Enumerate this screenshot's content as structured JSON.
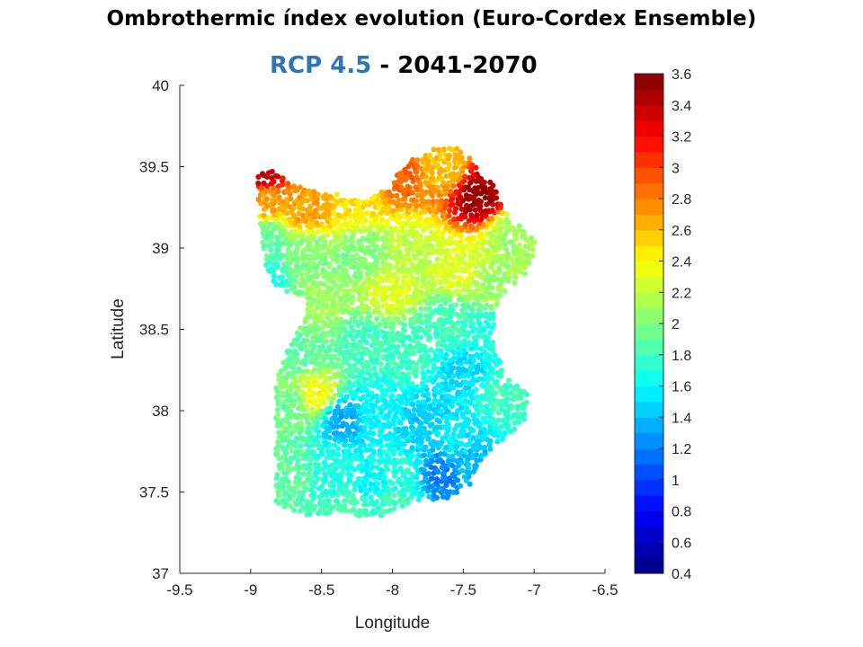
{
  "header": {
    "title": "Ombrothermic índex evolution (Euro-Cordex Ensemble)",
    "scenario": "RCP 4.5",
    "separator": " - ",
    "period": "2041-2070"
  },
  "colors": {
    "scenario": "#2e75b6",
    "axis": "#262626"
  },
  "chart_data": {
    "type": "scatter",
    "title": "Ombrothermic índex evolution (Euro-Cordex Ensemble)",
    "subtitle": "RCP 4.5 - 2041-2070",
    "xlabel": "Longitude",
    "ylabel": "Latitude",
    "xlim": [
      -9.5,
      -6.5
    ],
    "ylim": [
      37,
      40
    ],
    "xticks": [
      -9.5,
      -9,
      -8.5,
      -8,
      -7.5,
      -7,
      -6.5
    ],
    "xtick_labels": [
      "-9.5",
      "-9",
      "-8.5",
      "-8",
      "-7.5",
      "-7",
      "-6.5"
    ],
    "yticks": [
      37,
      37.5,
      38,
      38.5,
      39,
      39.5,
      40
    ],
    "ytick_labels": [
      "37",
      "37.5",
      "38",
      "38.5",
      "39",
      "39.5",
      "40"
    ],
    "grid": false,
    "colorbar": {
      "colormap": "jet",
      "range": [
        0.4,
        3.6
      ],
      "steps": 32,
      "ticks": [
        0.4,
        0.6,
        0.8,
        1,
        1.2,
        1.4,
        1.6,
        1.8,
        2,
        2.2,
        2.4,
        2.6,
        2.8,
        3,
        3.2,
        3.4,
        3.6
      ],
      "tick_labels": [
        "0.4",
        "0.6",
        "0.8",
        "1",
        "1.2",
        "1.4",
        "1.6",
        "1.8",
        "2",
        "2.2",
        "2.4",
        "2.6",
        "2.8",
        "3",
        "3.2",
        "3.4",
        "3.6"
      ]
    },
    "region_outline": [
      [
        -8.95,
        39.45
      ],
      [
        -8.85,
        39.48
      ],
      [
        -8.75,
        39.42
      ],
      [
        -8.6,
        39.35
      ],
      [
        -8.45,
        39.36
      ],
      [
        -8.3,
        39.3
      ],
      [
        -8.15,
        39.3
      ],
      [
        -8.0,
        39.42
      ],
      [
        -7.85,
        39.55
      ],
      [
        -7.68,
        39.62
      ],
      [
        -7.55,
        39.62
      ],
      [
        -7.45,
        39.55
      ],
      [
        -7.3,
        39.4
      ],
      [
        -7.18,
        39.2
      ],
      [
        -7.05,
        39.1
      ],
      [
        -6.98,
        39.02
      ],
      [
        -7.05,
        38.85
      ],
      [
        -7.25,
        38.7
      ],
      [
        -7.3,
        38.45
      ],
      [
        -7.2,
        38.2
      ],
      [
        -7.05,
        38.12
      ],
      [
        -7.05,
        37.95
      ],
      [
        -7.35,
        37.72
      ],
      [
        -7.45,
        37.55
      ],
      [
        -7.6,
        37.45
      ],
      [
        -7.85,
        37.45
      ],
      [
        -7.95,
        37.4
      ],
      [
        -8.15,
        37.33
      ],
      [
        -8.35,
        37.38
      ],
      [
        -8.6,
        37.35
      ],
      [
        -8.82,
        37.42
      ],
      [
        -8.82,
        37.8
      ],
      [
        -8.82,
        38.2
      ],
      [
        -8.7,
        38.45
      ],
      [
        -8.62,
        38.55
      ],
      [
        -8.6,
        38.7
      ],
      [
        -8.82,
        38.75
      ],
      [
        -8.9,
        38.9
      ],
      [
        -8.92,
        39.05
      ],
      [
        -8.95,
        39.25
      ]
    ],
    "value_anchors": [
      [
        -8.92,
        39.45,
        3.4
      ],
      [
        -8.9,
        39.3,
        2.7
      ],
      [
        -8.6,
        39.25,
        2.7
      ],
      [
        -8.25,
        39.3,
        2.5
      ],
      [
        -7.95,
        39.45,
        2.9
      ],
      [
        -7.65,
        39.5,
        2.6
      ],
      [
        -7.38,
        39.32,
        3.5
      ],
      [
        -7.15,
        39.1,
        2.1
      ],
      [
        -8.9,
        39.05,
        1.9
      ],
      [
        -8.9,
        38.82,
        1.7
      ],
      [
        -8.6,
        38.95,
        2.0
      ],
      [
        -8.2,
        38.95,
        2.0
      ],
      [
        -7.85,
        38.95,
        2.2
      ],
      [
        -7.55,
        38.85,
        2.3
      ],
      [
        -7.3,
        38.75,
        2.1
      ],
      [
        -8.5,
        38.65,
        2.1
      ],
      [
        -8.0,
        38.75,
        2.3
      ],
      [
        -7.6,
        38.55,
        1.8
      ],
      [
        -7.3,
        38.5,
        1.7
      ],
      [
        -8.65,
        38.35,
        1.9
      ],
      [
        -8.2,
        38.4,
        1.8
      ],
      [
        -7.9,
        38.35,
        1.8
      ],
      [
        -7.5,
        38.25,
        1.5
      ],
      [
        -7.2,
        38.1,
        1.8
      ],
      [
        -8.7,
        38.05,
        1.95
      ],
      [
        -8.55,
        38.1,
        2.4
      ],
      [
        -8.35,
        37.95,
        1.35
      ],
      [
        -8.1,
        38.0,
        1.6
      ],
      [
        -7.8,
        37.95,
        1.45
      ],
      [
        -7.55,
        37.85,
        1.55
      ],
      [
        -8.7,
        37.6,
        1.9
      ],
      [
        -8.45,
        37.6,
        1.7
      ],
      [
        -8.15,
        37.55,
        1.6
      ],
      [
        -7.95,
        37.6,
        1.7
      ],
      [
        -7.65,
        37.6,
        1.2
      ],
      [
        -7.45,
        37.65,
        1.4
      ],
      [
        -8.3,
        37.4,
        1.85
      ],
      [
        -8.0,
        37.42,
        1.8
      ]
    ]
  }
}
